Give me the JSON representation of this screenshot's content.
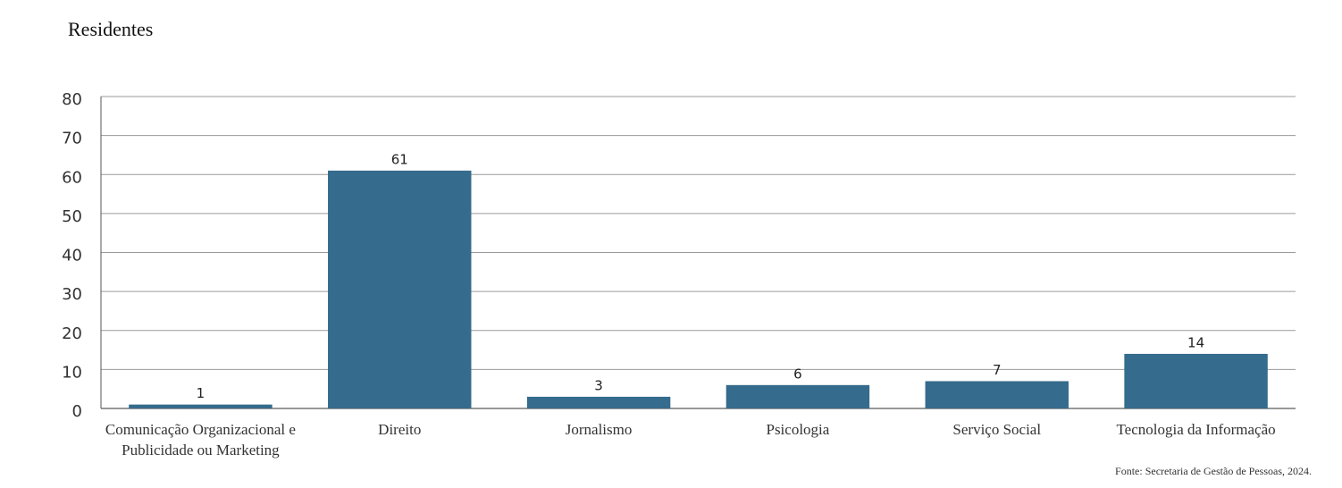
{
  "chart_data": {
    "type": "bar",
    "title": "Residentes",
    "categories": [
      "Comunicação Organizacional e Publicidade ou Marketing",
      "Direito",
      "Jornalismo",
      "Psicologia",
      "Serviço Social",
      "Tecnologia da Informação"
    ],
    "values": [
      1,
      61,
      3,
      6,
      7,
      14
    ],
    "color": "#356b8c",
    "ylim": [
      0,
      80
    ],
    "yticks": [
      0,
      10,
      20,
      30,
      40,
      50,
      60,
      70,
      80
    ],
    "grid": true,
    "source": "Fonte: Secretaria de Gestão de Pessoas, 2024."
  }
}
